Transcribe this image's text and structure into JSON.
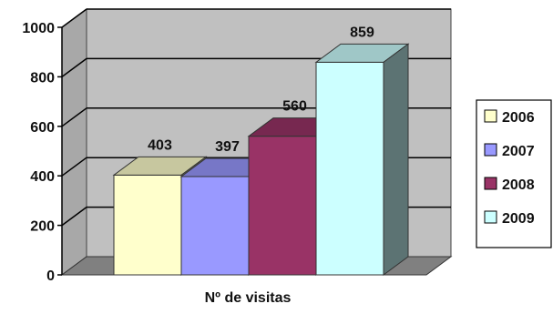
{
  "chart_data": {
    "type": "bar",
    "xlabel": "Nº de visitas",
    "ylabel": "",
    "ylim": [
      0,
      1000
    ],
    "yticks": [
      0,
      200,
      400,
      600,
      800,
      1000
    ],
    "grid": true,
    "legend_position": "right",
    "series": [
      {
        "name": "2006",
        "value": 403,
        "color": "#ffffcc"
      },
      {
        "name": "2007",
        "value": 397,
        "color": "#9999ff"
      },
      {
        "name": "2008",
        "value": 560,
        "color": "#993366"
      },
      {
        "name": "2009",
        "value": 859,
        "color": "#ccffff"
      }
    ]
  }
}
